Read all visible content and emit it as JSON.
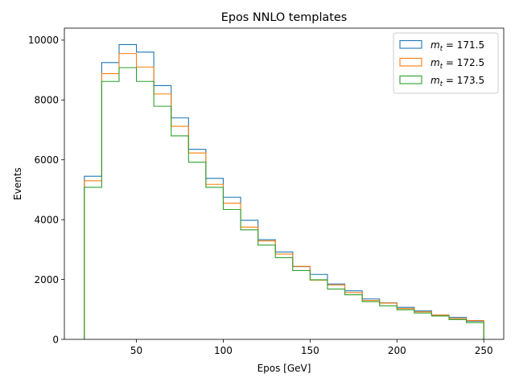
{
  "chart_data": {
    "type": "histogram-step",
    "title": "Epos NNLO templates",
    "xlabel": "Epos [GeV]",
    "ylabel": "Events",
    "xlim": [
      8.5,
      261.5
    ],
    "ylim": [
      0,
      10400
    ],
    "xticks": [
      50,
      100,
      150,
      200,
      250
    ],
    "yticks": [
      0,
      2000,
      4000,
      6000,
      8000,
      10000
    ],
    "legend_position": "top-right",
    "bin_edges": [
      20,
      30,
      40,
      50,
      60,
      70,
      80,
      90,
      100,
      110,
      120,
      130,
      140,
      150,
      160,
      170,
      180,
      190,
      200,
      210,
      220,
      230,
      240,
      250
    ],
    "series": [
      {
        "label_prefix": "m",
        "label_sub": "t",
        "label_value": " = 171.5",
        "color": "#1f77b4",
        "values": [
          5450,
          9250,
          9850,
          9600,
          8480,
          7400,
          6350,
          5380,
          4750,
          3980,
          3330,
          2920,
          2430,
          2170,
          1850,
          1620,
          1350,
          1220,
          1070,
          950,
          810,
          730,
          610
        ]
      },
      {
        "label_prefix": "m",
        "label_sub": "t",
        "label_value": " = 172.5",
        "color": "#ff7f0e",
        "values": [
          5300,
          8880,
          9550,
          9100,
          8200,
          7120,
          6230,
          5180,
          4550,
          3750,
          3290,
          2850,
          2440,
          1980,
          1820,
          1560,
          1300,
          1210,
          1030,
          920,
          810,
          700,
          630
        ]
      },
      {
        "label_prefix": "m",
        "label_sub": "t",
        "label_value": " = 173.5",
        "color": "#2ca02c",
        "values": [
          5080,
          8620,
          9080,
          8620,
          7790,
          6800,
          5920,
          5080,
          4340,
          3660,
          3150,
          2730,
          2300,
          1990,
          1680,
          1490,
          1260,
          1120,
          990,
          880,
          780,
          660,
          560
        ]
      }
    ]
  }
}
